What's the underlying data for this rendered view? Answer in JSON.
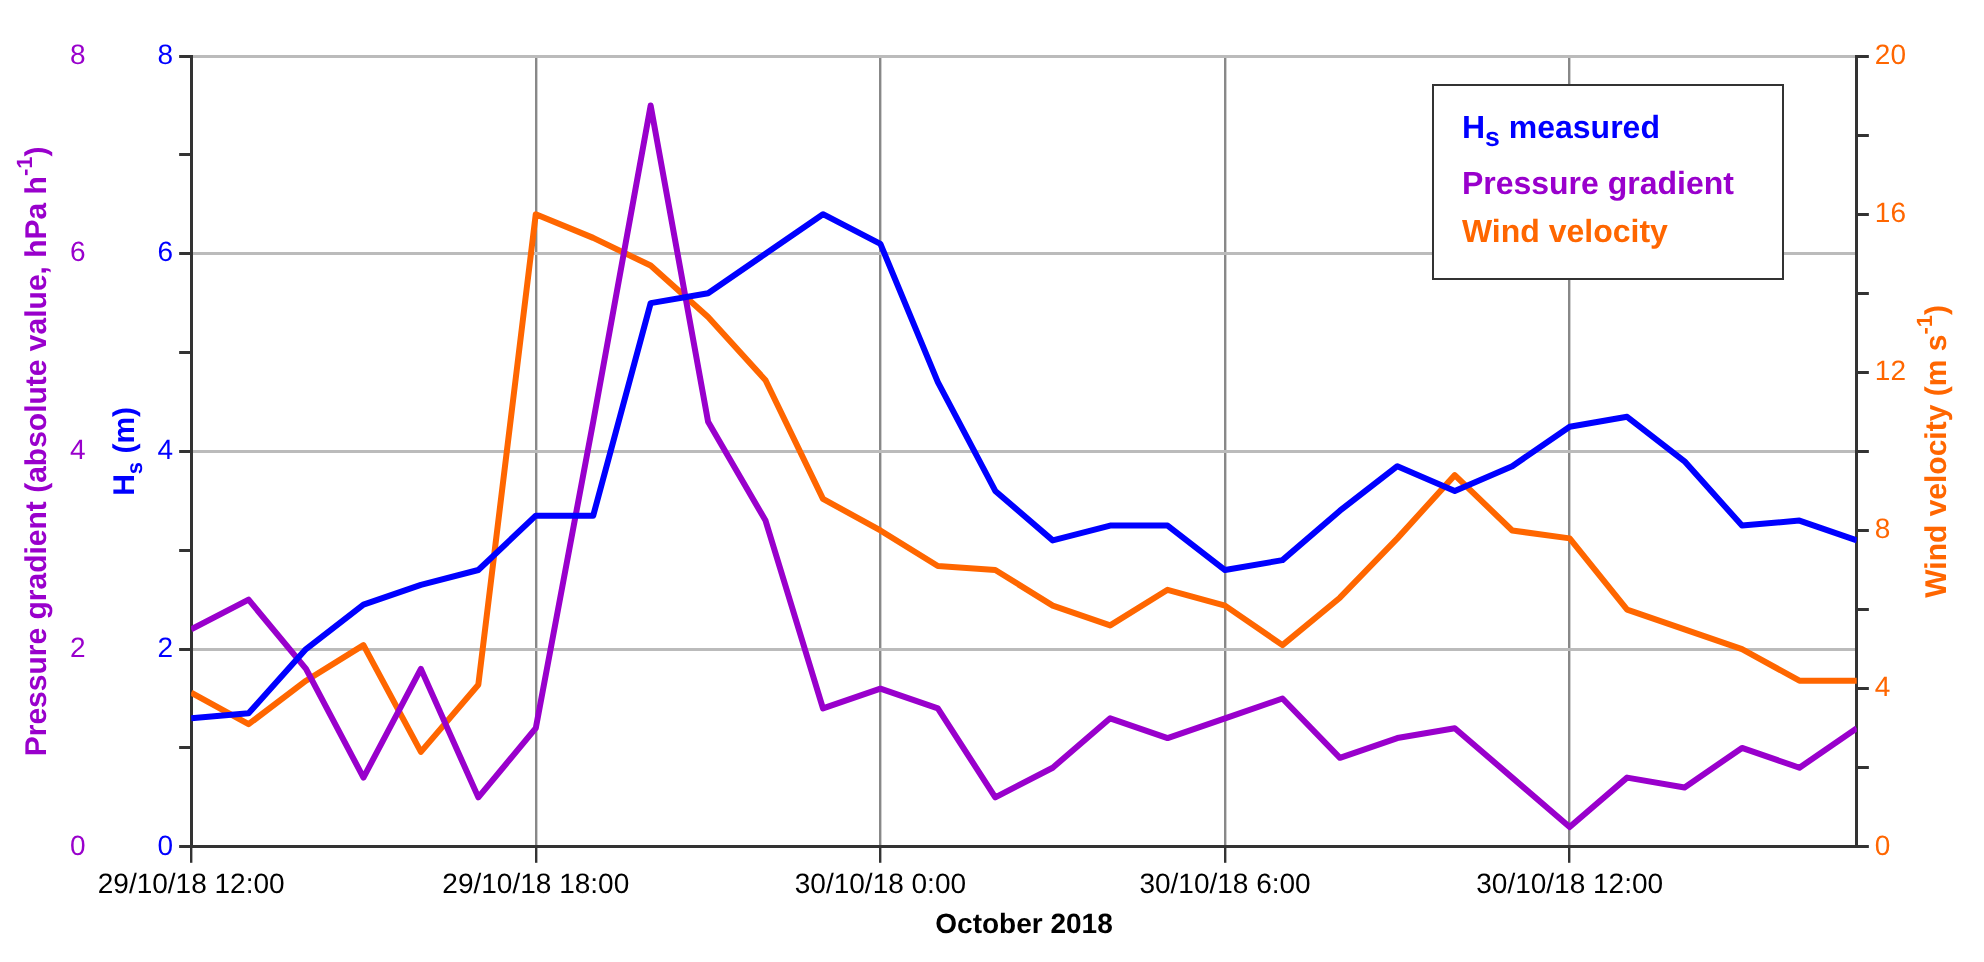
{
  "chart_data": {
    "type": "line",
    "x": [
      "2018-10-29T12:00",
      "2018-10-29T13:00",
      "2018-10-29T14:00",
      "2018-10-29T15:00",
      "2018-10-29T16:00",
      "2018-10-29T17:00",
      "2018-10-29T18:00",
      "2018-10-29T19:00",
      "2018-10-29T20:00",
      "2018-10-29T21:00",
      "2018-10-29T22:00",
      "2018-10-29T23:00",
      "2018-10-30T00:00",
      "2018-10-30T01:00",
      "2018-10-30T02:00",
      "2018-10-30T03:00",
      "2018-10-30T04:00",
      "2018-10-30T05:00",
      "2018-10-30T06:00",
      "2018-10-30T07:00",
      "2018-10-30T08:00",
      "2018-10-30T09:00",
      "2018-10-30T10:00",
      "2018-10-30T11:00",
      "2018-10-30T12:00",
      "2018-10-30T13:00",
      "2018-10-30T14:00",
      "2018-10-30T15:00",
      "2018-10-30T16:00",
      "2018-10-30T17:00"
    ],
    "xlim": [
      "2018-10-29T12:00",
      "2018-10-30T17:00"
    ],
    "xticks": [
      {
        "value": "2018-10-29T12:00",
        "label": "29/10/18 12:00"
      },
      {
        "value": "2018-10-29T18:00",
        "label": "29/10/18 18:00"
      },
      {
        "value": "2018-10-30T00:00",
        "label": "30/10/18 0:00"
      },
      {
        "value": "2018-10-30T06:00",
        "label": "30/10/18 6:00"
      },
      {
        "value": "2018-10-30T12:00",
        "label": "30/10/18 12:00"
      }
    ],
    "xlabel": "October 2018",
    "ylabel": "Pressure gradient (absolute value, hPa h$^{-1}$)",
    "ylim": [
      0,
      8
    ],
    "yticks": [
      0,
      2,
      4,
      6,
      8
    ],
    "y2label": "H$_{s}$ (m)",
    "y2lim": [
      0,
      8
    ],
    "y2ticks": [
      0,
      {
        "value": 1,
        "label": null
      },
      2,
      {
        "value": 3,
        "label": null
      },
      4,
      {
        "value": 5,
        "label": null
      },
      6,
      {
        "value": 7,
        "label": null
      },
      8
    ],
    "y3label": "Wind velocity (m s$^{-1}$)",
    "y3lim": [
      0,
      20
    ],
    "y3ticks": [
      0,
      {
        "value": 2,
        "label": null
      },
      4,
      {
        "value": 6,
        "label": null
      },
      8,
      {
        "value": 10,
        "label": null
      },
      12,
      {
        "value": 14,
        "label": null
      },
      16,
      {
        "value": 18,
        "label": null
      },
      20
    ],
    "grid": true,
    "legend": "top right",
    "series": [
      {
        "name": "H$_{s}$ measured",
        "color": "#0000ff",
        "axis": "y2",
        "values": [
          1.3,
          1.35,
          2.0,
          2.45,
          2.65,
          2.8,
          3.35,
          3.35,
          5.5,
          5.6,
          6.0,
          6.4,
          6.1,
          4.7,
          3.6,
          3.1,
          3.25,
          3.25,
          2.8,
          2.9,
          3.4,
          3.85,
          3.6,
          3.85,
          4.25,
          4.35,
          3.9,
          3.25,
          3.3,
          3.1
        ]
      },
      {
        "name": "Pressure gradient",
        "color": "#9900cc",
        "values": [
          2.2,
          2.5,
          1.8,
          0.7,
          1.8,
          0.5,
          1.2,
          4.3,
          7.5,
          4.3,
          3.3,
          1.4,
          1.6,
          1.4,
          0.5,
          0.8,
          1.3,
          1.1,
          1.3,
          1.5,
          0.9,
          1.1,
          1.2,
          0.7,
          0.2,
          0.7,
          0.6,
          1.0,
          0.8,
          1.2
        ]
      },
      {
        "name": "Wind velocity",
        "color": "#ff6600",
        "axis": "y3",
        "values": [
          3.9,
          3.1,
          4.2,
          5.1,
          2.4,
          4.1,
          16.0,
          15.4,
          14.7,
          13.4,
          11.8,
          8.8,
          8.0,
          7.1,
          7.0,
          6.1,
          5.6,
          6.5,
          6.1,
          5.1,
          6.3,
          7.8,
          9.4,
          8.0,
          7.8,
          6.0,
          5.5,
          5.0,
          4.2,
          4.2
        ]
      }
    ]
  }
}
